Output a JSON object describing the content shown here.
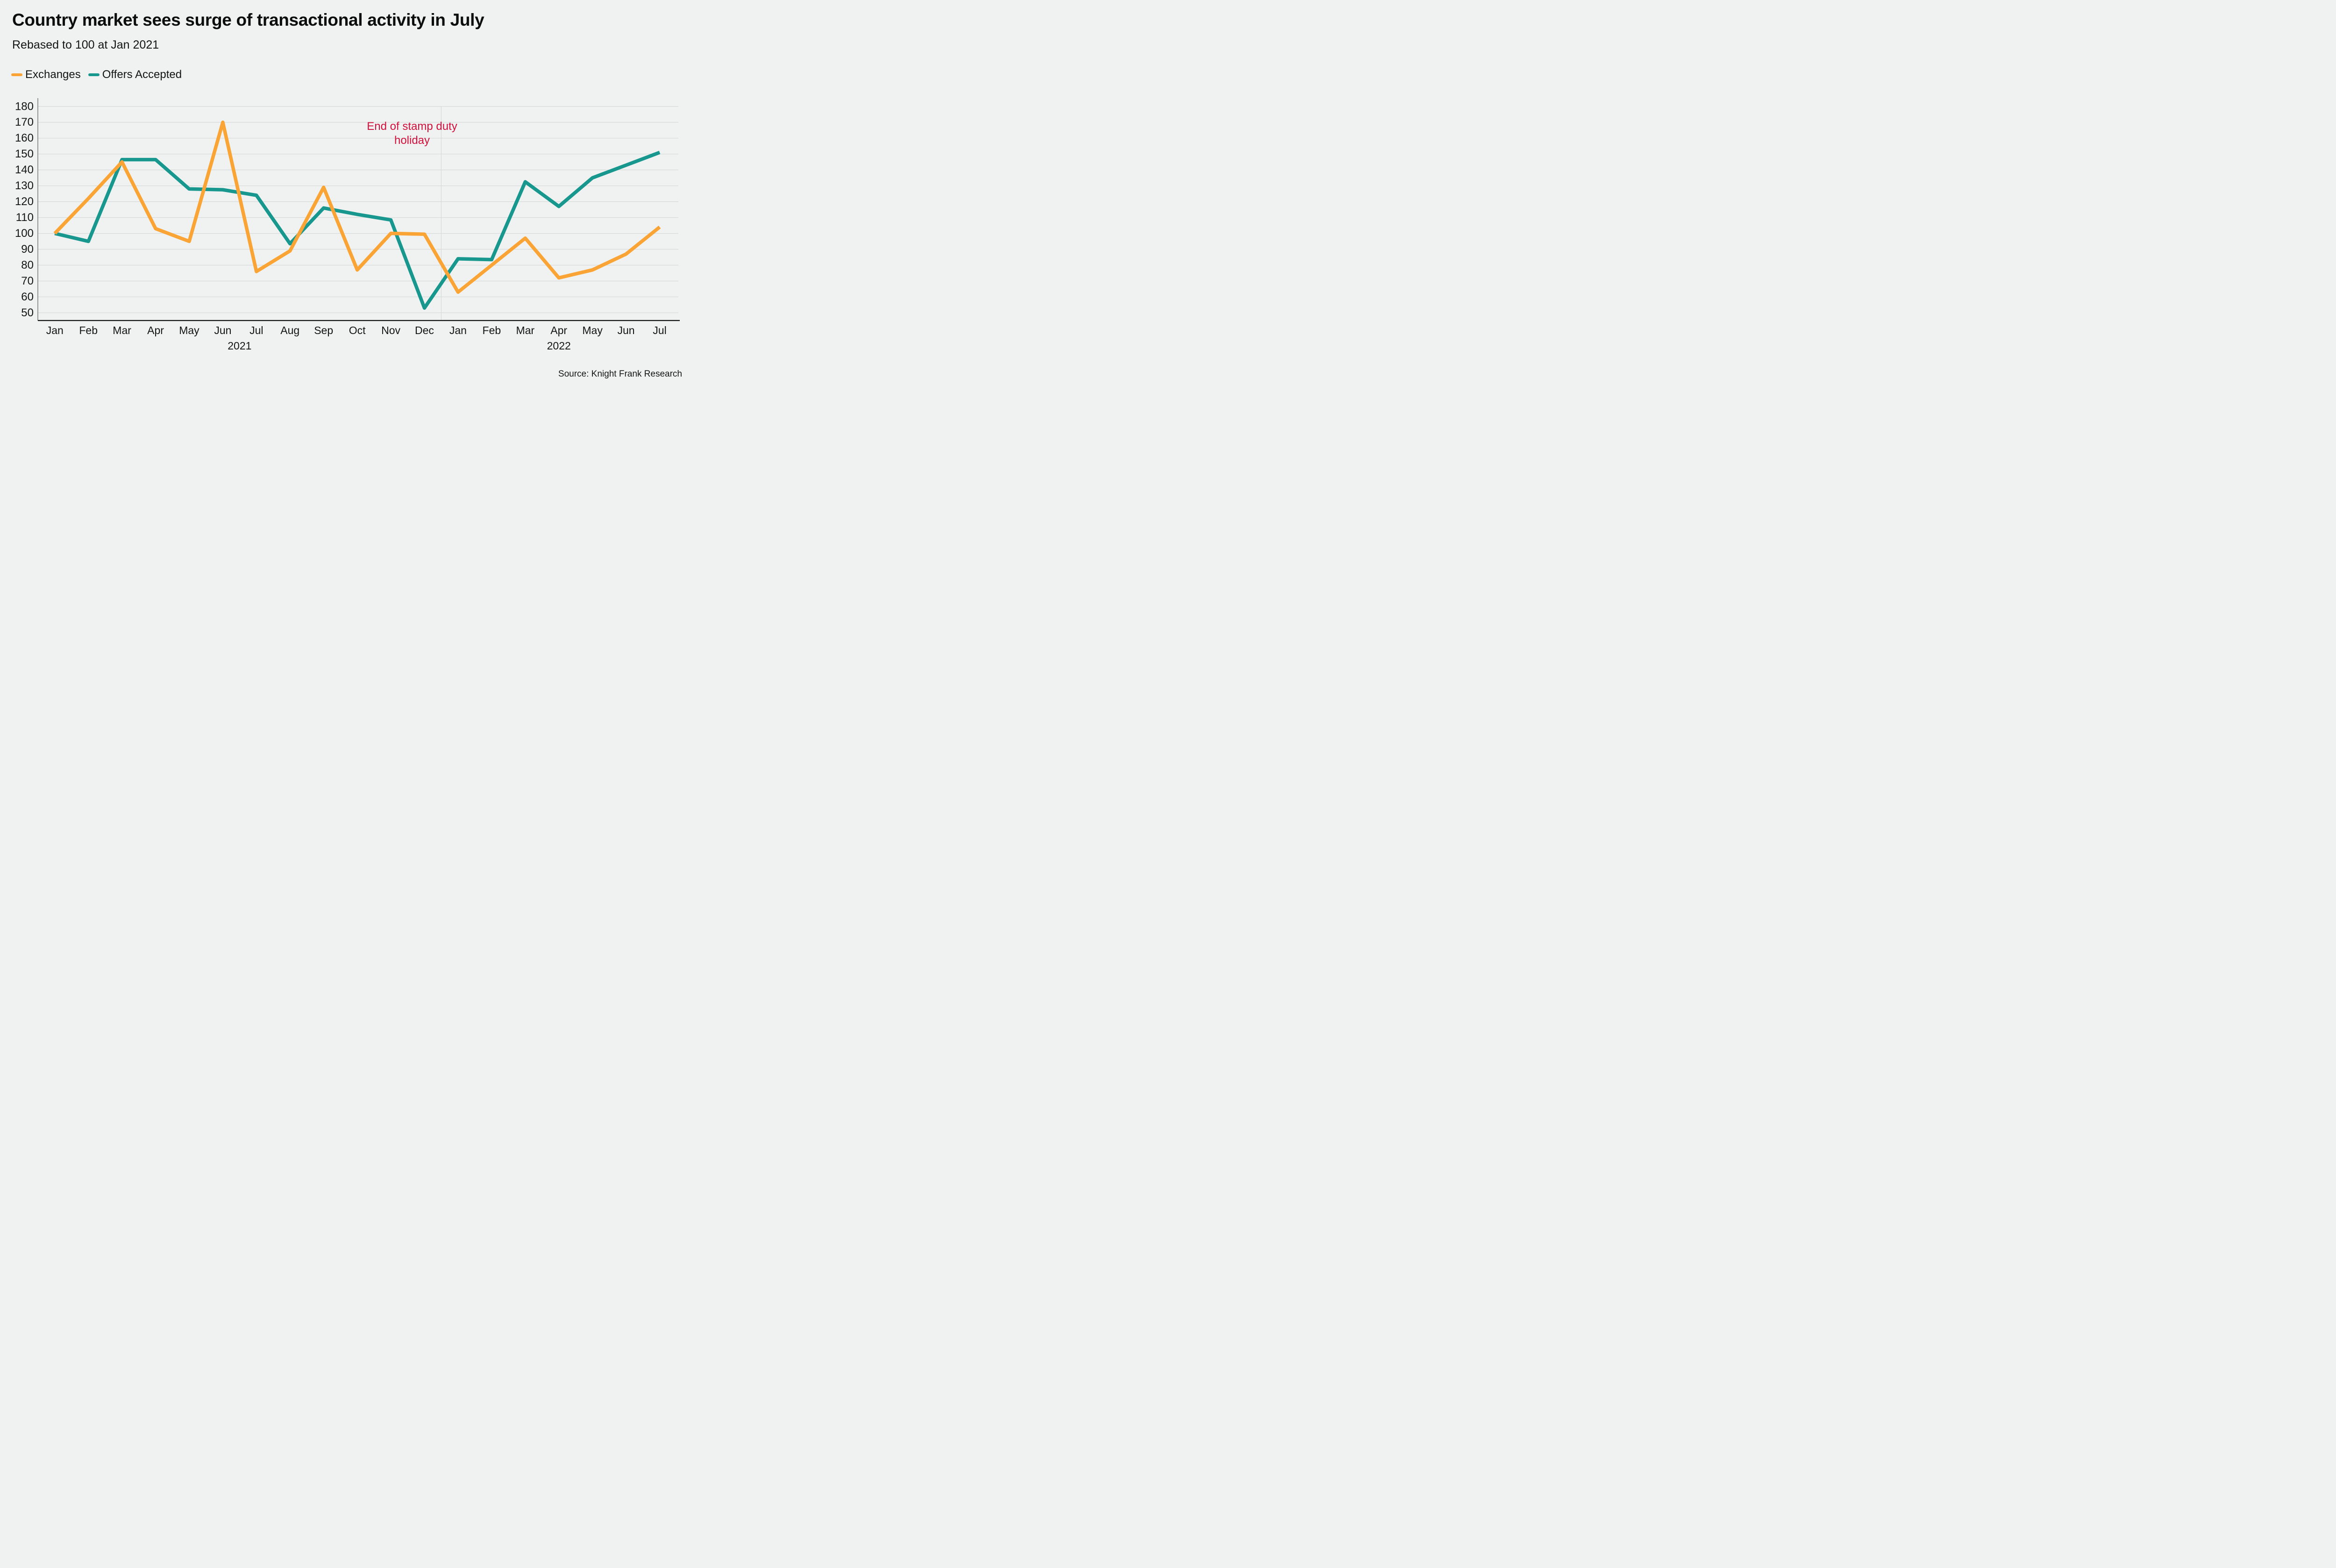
{
  "colors": {
    "background": "#eff2f0",
    "gridline": "#d6dad8",
    "year_divider": "#d6dad8",
    "y_axis_spine": "#6f6f6f",
    "x_axis_spine": "#141414",
    "text": "#141414",
    "annotation": "#d10f3c",
    "exchanges": "#faa435",
    "offers_accepted": "#17978e"
  },
  "chart_data": {
    "type": "line",
    "title": "Country market sees surge of transactional activity in July",
    "subtitle": "Rebased to 100 at Jan 2021",
    "source": "Source: Knight Frank Research",
    "xlabel": "",
    "ylabel": "",
    "categories": [
      "Jan",
      "Feb",
      "Mar",
      "Apr",
      "May",
      "Jun",
      "Jul",
      "Aug",
      "Sep",
      "Oct",
      "Nov",
      "Dec",
      "Jan",
      "Feb",
      "Mar",
      "Apr",
      "May",
      "Jun",
      "Jul"
    ],
    "year_labels": [
      {
        "label": "2021",
        "from": 0,
        "to": 11
      },
      {
        "label": "2022",
        "from": 12,
        "to": 18
      }
    ],
    "y_ticks": [
      50,
      60,
      70,
      80,
      90,
      100,
      110,
      120,
      130,
      140,
      150,
      160,
      170,
      180
    ],
    "ylim": [
      50,
      180
    ],
    "grid": "horizontal",
    "legend_position": "top-left",
    "series": [
      {
        "name": "Exchanges",
        "color": "#faa435",
        "values": [
          100,
          122,
          145,
          103,
          95,
          170,
          76,
          89,
          129,
          77,
          100,
          99.5,
          63,
          80,
          97,
          72,
          77,
          87,
          104
        ]
      },
      {
        "name": "Offers Accepted",
        "color": "#17978e",
        "values": [
          100,
          95,
          146.5,
          146.5,
          128,
          127.5,
          124,
          93.5,
          116,
          112,
          108.5,
          53,
          84,
          83.5,
          132.5,
          117,
          135,
          143,
          151
        ]
      }
    ],
    "annotation": {
      "line1": "End of stamp duty",
      "line2": "holiday",
      "text": "End of stamp duty holiday",
      "color": "#d10f3c"
    }
  }
}
